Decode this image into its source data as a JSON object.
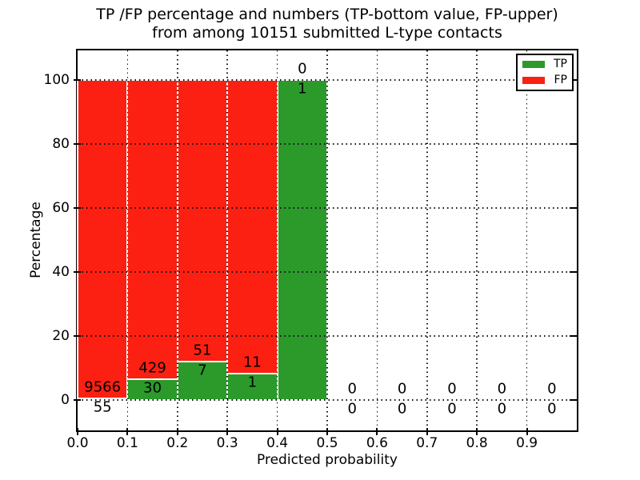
{
  "chart_data": {
    "type": "bar",
    "stacked": true,
    "normalized_to_percent": true,
    "title": "TP /FP percentage and numbers (TP-bottom value, FP-upper)",
    "subtitle": "from among 10151 submitted L-type contacts",
    "xlabel": "Predicted probability",
    "ylabel": "Percentage",
    "xlim": [
      0.0,
      1.0
    ],
    "ylim": [
      -10,
      110
    ],
    "grid": {
      "visible": true,
      "style": "dotted"
    },
    "x_ticks": [
      "0.0",
      "0.1",
      "0.2",
      "0.3",
      "0.4",
      "0.5",
      "0.6",
      "0.7",
      "0.8",
      "0.9"
    ],
    "y_ticks": [
      0,
      20,
      40,
      60,
      80,
      100
    ],
    "legend": {
      "position": "upper-right",
      "entries": [
        {
          "label": "TP",
          "color": "#2b9a2b"
        },
        {
          "label": "FP",
          "color": "#fb2012"
        }
      ]
    },
    "colors": {
      "tp": "#2b9a2b",
      "fp": "#fb2012",
      "bar_edge": "#ffffff",
      "text": "#000000",
      "background": "#ffffff"
    },
    "bins": [
      {
        "x_start": 0.0,
        "x_end": 0.1,
        "tp_count": 55,
        "fp_count": 9566,
        "tp_pct": 0.57,
        "fp_pct": 99.43
      },
      {
        "x_start": 0.1,
        "x_end": 0.2,
        "tp_count": 30,
        "fp_count": 429,
        "tp_pct": 6.54,
        "fp_pct": 93.46
      },
      {
        "x_start": 0.2,
        "x_end": 0.3,
        "tp_count": 7,
        "fp_count": 51,
        "tp_pct": 12.07,
        "fp_pct": 87.93
      },
      {
        "x_start": 0.3,
        "x_end": 0.4,
        "tp_count": 1,
        "fp_count": 11,
        "tp_pct": 8.33,
        "fp_pct": 91.67
      },
      {
        "x_start": 0.4,
        "x_end": 0.5,
        "tp_count": 1,
        "fp_count": 0,
        "tp_pct": 100.0,
        "fp_pct": 0.0
      },
      {
        "x_start": 0.5,
        "x_end": 0.6,
        "tp_count": 0,
        "fp_count": 0,
        "tp_pct": 0.0,
        "fp_pct": 0.0
      },
      {
        "x_start": 0.6,
        "x_end": 0.7,
        "tp_count": 0,
        "fp_count": 0,
        "tp_pct": 0.0,
        "fp_pct": 0.0
      },
      {
        "x_start": 0.7,
        "x_end": 0.8,
        "tp_count": 0,
        "fp_count": 0,
        "tp_pct": 0.0,
        "fp_pct": 0.0
      },
      {
        "x_start": 0.8,
        "x_end": 0.9,
        "tp_count": 0,
        "fp_count": 0,
        "tp_pct": 0.0,
        "fp_pct": 0.0
      },
      {
        "x_start": 0.9,
        "x_end": 1.0,
        "tp_count": 0,
        "fp_count": 0,
        "tp_pct": 0.0,
        "fp_pct": 0.0
      }
    ]
  }
}
